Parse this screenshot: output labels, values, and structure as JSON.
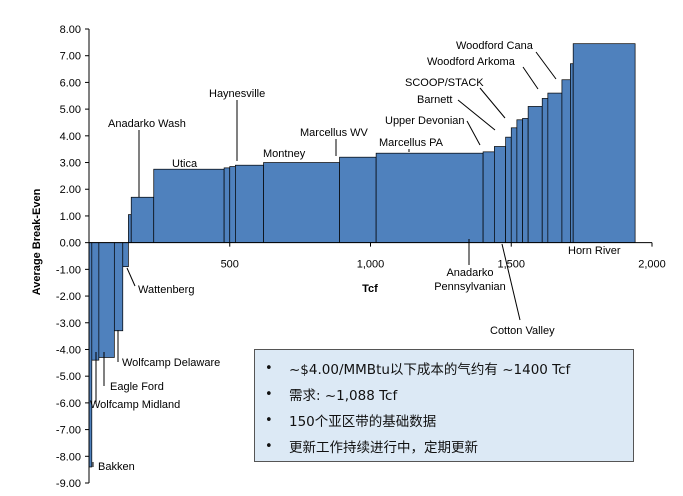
{
  "chart_data": {
    "type": "bar",
    "xlabel": "Tcf",
    "ylabel": "Average Break-Even",
    "xlim": [
      0,
      2000
    ],
    "ylim": [
      -9,
      8
    ],
    "x_ticks": [
      500,
      1000,
      1500,
      2000
    ],
    "x_tick_labels": [
      "500",
      "1,000",
      "1,500",
      "2,000"
    ],
    "y_ticks": [
      8,
      7,
      6,
      5,
      4,
      3,
      2,
      1,
      0,
      -1,
      -2,
      -3,
      -4,
      -5,
      -6,
      -7,
      -8,
      -9
    ],
    "y_tick_labels": [
      "8.00",
      "7.00",
      "6.00",
      "5.00",
      "4.00",
      "3.00",
      "2.00",
      "1.00",
      "0.00",
      "-1.00",
      "-2.00",
      "-3.00",
      "-4.00",
      "-5.00",
      "-6.00",
      "-7.00",
      "-8.00",
      "-9.00"
    ],
    "bars": [
      {
        "x0": 0,
        "x1": 10,
        "value": -8.4
      },
      {
        "x0": 10,
        "x1": 35,
        "value": -4.4
      },
      {
        "x0": 35,
        "x1": 90,
        "value": -4.3
      },
      {
        "x0": 90,
        "x1": 120,
        "value": -3.3
      },
      {
        "x0": 120,
        "x1": 140,
        "value": -0.9
      },
      {
        "x0": 140,
        "x1": 150,
        "value": 1.05
      },
      {
        "x0": 150,
        "x1": 230,
        "value": 1.7
      },
      {
        "x0": 230,
        "x1": 480,
        "value": 2.75
      },
      {
        "x0": 480,
        "x1": 500,
        "value": 2.8
      },
      {
        "x0": 500,
        "x1": 520,
        "value": 2.85
      },
      {
        "x0": 520,
        "x1": 620,
        "value": 2.9
      },
      {
        "x0": 620,
        "x1": 890,
        "value": 3.0
      },
      {
        "x0": 890,
        "x1": 1020,
        "value": 3.2
      },
      {
        "x0": 1020,
        "x1": 1400,
        "value": 3.35
      },
      {
        "x0": 1400,
        "x1": 1440,
        "value": 3.4
      },
      {
        "x0": 1440,
        "x1": 1480,
        "value": 3.6
      },
      {
        "x0": 1480,
        "x1": 1500,
        "value": 3.95
      },
      {
        "x0": 1500,
        "x1": 1520,
        "value": 4.3
      },
      {
        "x0": 1520,
        "x1": 1540,
        "value": 4.6
      },
      {
        "x0": 1540,
        "x1": 1560,
        "value": 4.65
      },
      {
        "x0": 1560,
        "x1": 1610,
        "value": 5.1
      },
      {
        "x0": 1610,
        "x1": 1630,
        "value": 5.4
      },
      {
        "x0": 1630,
        "x1": 1680,
        "value": 5.6
      },
      {
        "x0": 1680,
        "x1": 1710,
        "value": 6.1
      },
      {
        "x0": 1710,
        "x1": 1720,
        "value": 6.7
      },
      {
        "x0": 1720,
        "x1": 1940,
        "value": 7.45
      }
    ],
    "annotations": [
      {
        "label": "Bakken",
        "x": 5,
        "y": -8.4
      },
      {
        "label": "Wolfcamp Midland",
        "x": 20,
        "y": -4.4
      },
      {
        "label": "Eagle Ford",
        "x": 60,
        "y": -4.3
      },
      {
        "label": "Wolfcamp Delaware",
        "x": 110,
        "y": -3.3
      },
      {
        "label": "Wattenberg",
        "x": 130,
        "y": -0.9
      },
      {
        "label": "Anadarko Wash",
        "x": 170,
        "y": 1.7
      },
      {
        "label": "Utica",
        "x": 350,
        "y": 2.75
      },
      {
        "label": "Haynesville",
        "x": 510,
        "y": 2.85
      },
      {
        "label": "Montney",
        "x": 750,
        "y": 3.0
      },
      {
        "label": "Marcellus WV",
        "x": 950,
        "y": 3.2
      },
      {
        "label": "Marcellus PA",
        "x": 1200,
        "y": 3.35
      },
      {
        "label": "Anadarko\nPennsylvanian",
        "x": 1420,
        "y": 3.4
      },
      {
        "label": "Upper Devonian",
        "x": 1460,
        "y": 3.6
      },
      {
        "label": "Barnett",
        "x": 1490,
        "y": 3.95
      },
      {
        "label": "SCOOP/STACK",
        "x": 1540,
        "y": 4.65
      },
      {
        "label": "Cotton Valley",
        "x": 1580,
        "y": 5.1
      },
      {
        "label": "Woodford Arkoma",
        "x": 1650,
        "y": 5.6
      },
      {
        "label": "Woodford Cana",
        "x": 1710,
        "y": 6.7
      },
      {
        "label": "Horn River",
        "x": 1900,
        "y": 7.45
      }
    ]
  },
  "notes": {
    "items": [
      "~$4.00/MMBtu以下成本的气约有 ~1400 Tcf",
      "需求: ~1,088 Tcf",
      "150个亚区带的基础数据",
      "更新工作持续进行中，定期更新"
    ]
  }
}
